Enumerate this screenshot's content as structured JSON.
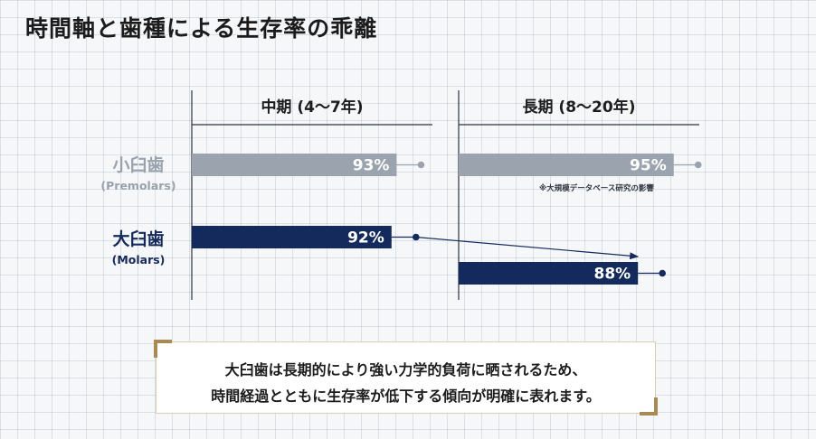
{
  "title": "時間軸と歯種による生存率の乖離",
  "chart_data": {
    "type": "bar",
    "orientation": "horizontal",
    "panels": [
      {
        "title": "中期 (4〜7年)",
        "values": {
          "premolar": 93,
          "molar": 92
        }
      },
      {
        "title": "長期 (8〜20年)",
        "values": {
          "premolar": 95,
          "molar": 88
        }
      }
    ],
    "series": [
      {
        "key": "premolar",
        "name": "小臼歯",
        "subname": "(Premolars)",
        "color": "#9aa3ae",
        "label_color": "#9aa2ad"
      },
      {
        "key": "molar",
        "name": "大臼歯",
        "subname": "(Molars)",
        "color": "#142a5c",
        "label_color": "#15295a"
      }
    ],
    "value_suffix": "%",
    "annotations": [
      "※大規模データベース研究の影響"
    ],
    "trend_arrow": {
      "series": "molar",
      "from_panel": 0,
      "to_panel": 1
    }
  },
  "callout": {
    "line1": "大臼歯は長期的により強い力学的負荷に晒されるため、",
    "line2": "時間経過とともに生存率が低下する傾向が明確に表れます。"
  }
}
